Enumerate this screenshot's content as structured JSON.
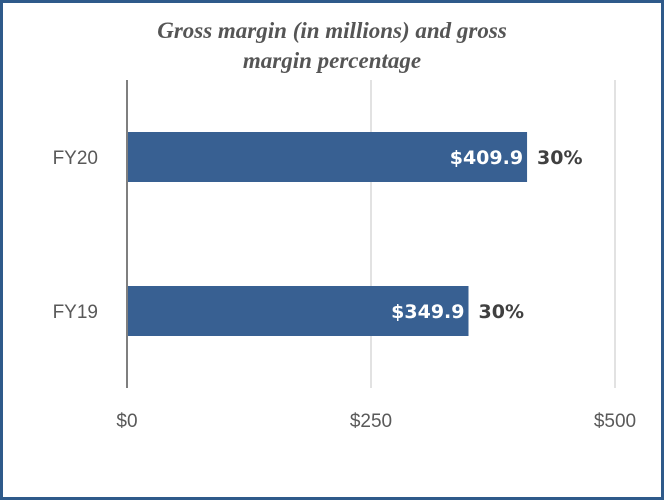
{
  "chart_data": {
    "type": "bar",
    "orientation": "horizontal",
    "title_lines": [
      "Gross margin (in millions) and gross",
      "margin percentage"
    ],
    "categories": [
      "FY20",
      "FY19"
    ],
    "values": [
      409.9,
      349.9
    ],
    "value_labels": [
      "$409.9",
      "$349.9"
    ],
    "percent_labels": [
      "30%",
      "30%"
    ],
    "xlim": [
      0,
      500
    ],
    "x_ticks": [
      0,
      250,
      500
    ],
    "x_tick_labels": [
      "$0",
      "$250",
      "$500"
    ],
    "grid": true,
    "bar_color": "#386092",
    "gridline_color": "#d9d9d9",
    "axis_color": "#7f7f7f"
  }
}
